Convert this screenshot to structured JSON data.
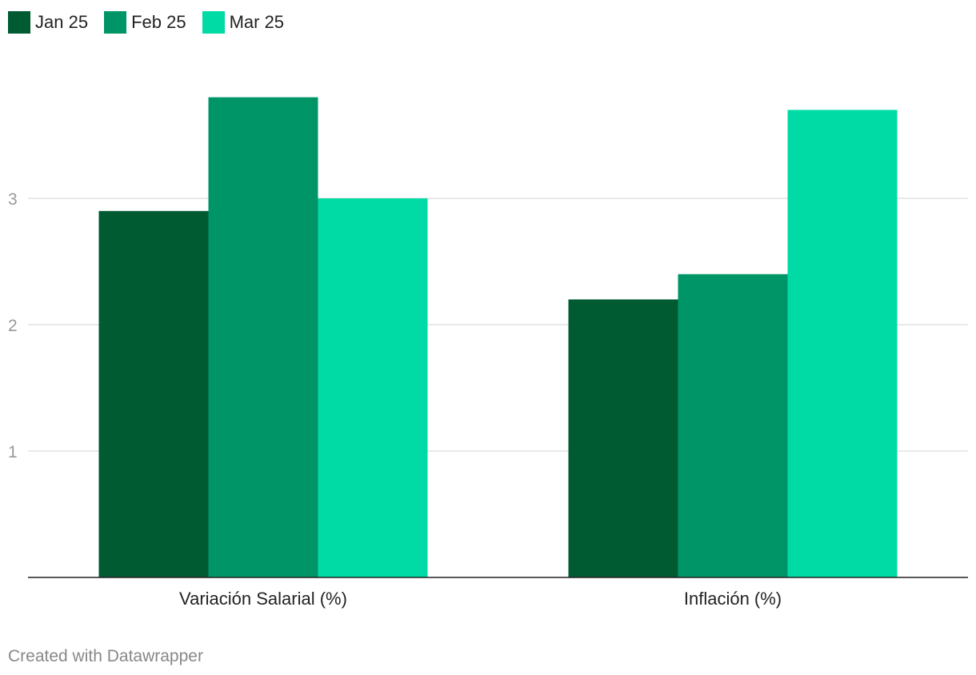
{
  "chart_data": {
    "type": "bar",
    "categories": [
      "Variación Salarial (%)",
      "Inflación (%)"
    ],
    "series": [
      {
        "name": "Jan 25",
        "color": "#005a32",
        "values": [
          2.9,
          2.2
        ]
      },
      {
        "name": "Feb 25",
        "color": "#009566",
        "values": [
          3.8,
          2.4
        ]
      },
      {
        "name": "Mar 25",
        "color": "#00dba6",
        "values": [
          3.0,
          3.7
        ]
      }
    ],
    "yticks": [
      1,
      2,
      3
    ],
    "ylim": [
      0,
      4.2
    ],
    "grid": true,
    "legend_position": "top-left"
  },
  "footer": {
    "credit": "Created with Datawrapper"
  }
}
